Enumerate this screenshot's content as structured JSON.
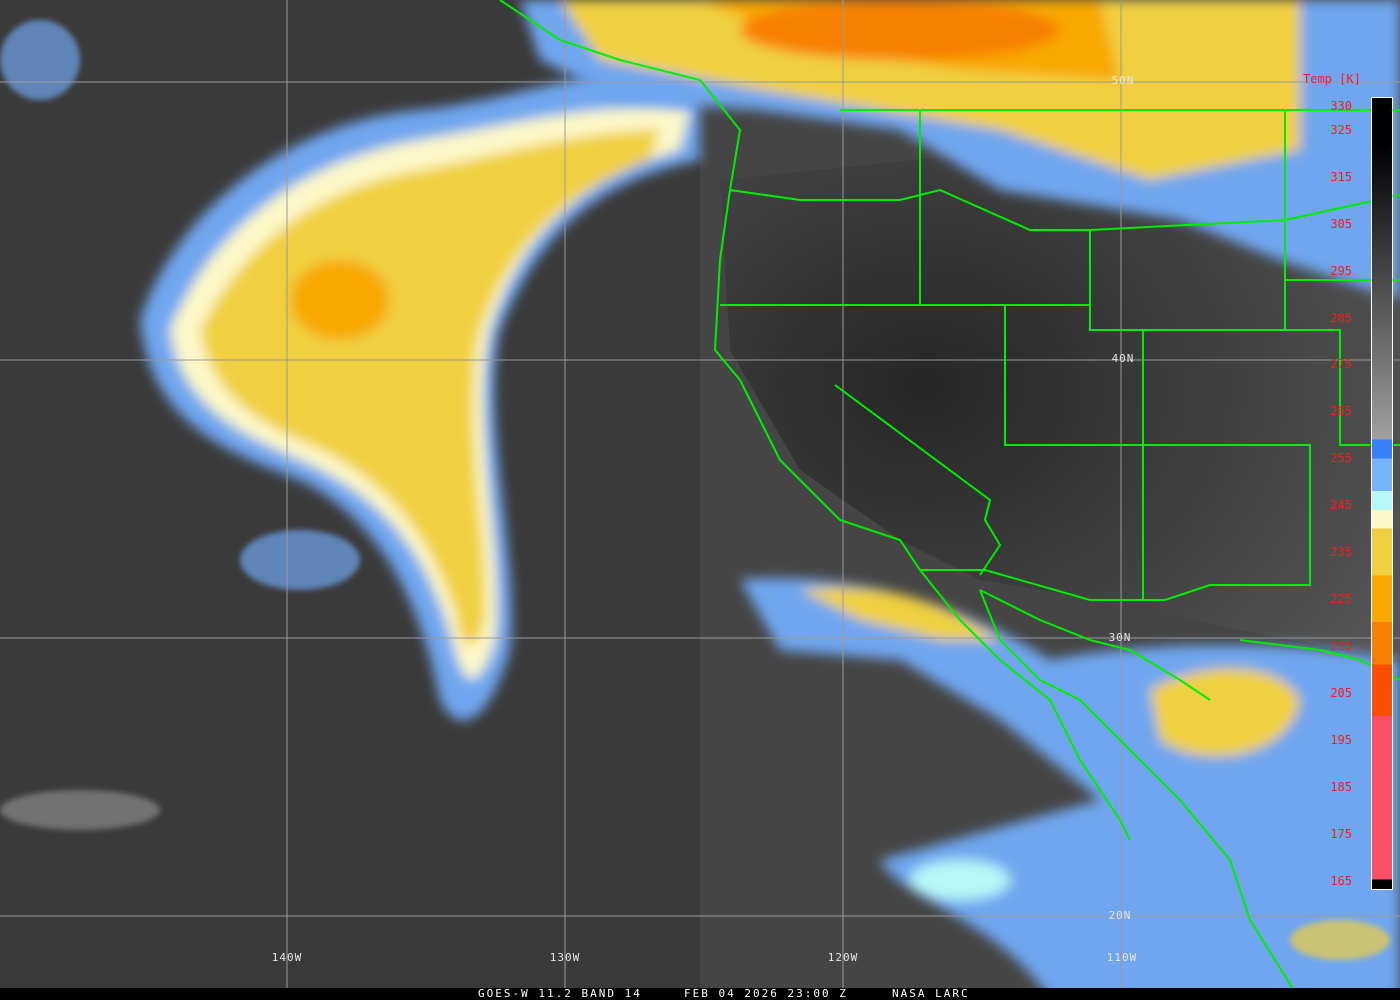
{
  "caption": {
    "satellite": "GOES-W 11.2 BAND 14",
    "datetime": "FEB 04 2026 23:00 Z",
    "source": "NASA LARC"
  },
  "colorbar": {
    "title": "Temp [K]",
    "ticks": [
      "330",
      "325",
      "315",
      "305",
      "295",
      "285",
      "275",
      "265",
      "255",
      "245",
      "235",
      "225",
      "215",
      "205",
      "195",
      "185",
      "175",
      "165"
    ],
    "range_k": [
      163,
      332
    ],
    "colors": {
      "warm_top": "#000000",
      "warm_bottom": "#a0a0a0",
      "blue": "#3a80f8",
      "light_blue": "#78b4f8",
      "cyan": "#b8f8f8",
      "pale_yellow": "#fcf8c8",
      "yellow": "#f0d040",
      "orange": "#f8a800",
      "dark_orange": "#f88000",
      "red_orange": "#f85000",
      "pink": "#f85068"
    }
  },
  "grid": {
    "latitudes": [
      "50N",
      "40N",
      "30N",
      "20N"
    ],
    "longitudes": [
      "140W",
      "130W",
      "120W",
      "110W"
    ]
  },
  "colors": {
    "boundaries": "#00ee00",
    "gridlines": "#9a9a9a"
  }
}
